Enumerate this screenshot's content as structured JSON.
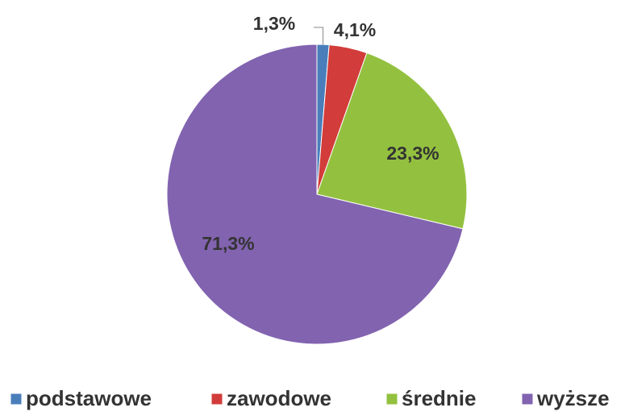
{
  "chart_data": {
    "type": "pie",
    "categories": [
      "podstawowe",
      "zawodowe",
      "średnie",
      "wyższe"
    ],
    "values": [
      1.3,
      4.1,
      23.3,
      71.3
    ],
    "value_labels": [
      "1,3%",
      "4,1%",
      "23,3%",
      "71,3%"
    ],
    "colors": [
      "#4a7ebb",
      "#d23c3a",
      "#93c13f",
      "#8263b0"
    ],
    "legend": "bottom"
  }
}
